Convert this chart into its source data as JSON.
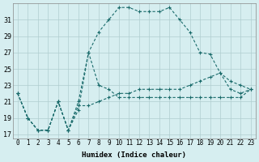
{
  "xlabel": "Humidex (Indice chaleur)",
  "background_color": "#d6eef0",
  "grid_color": "#b0cdd0",
  "line_color": "#1a6b6b",
  "xlim": [
    -0.5,
    23.5
  ],
  "ylim": [
    16.5,
    33.0
  ],
  "xticks": [
    0,
    1,
    2,
    3,
    4,
    5,
    6,
    7,
    8,
    9,
    10,
    11,
    12,
    13,
    14,
    15,
    16,
    17,
    18,
    19,
    20,
    21,
    22,
    23
  ],
  "yticks": [
    17,
    19,
    21,
    23,
    25,
    27,
    29,
    31
  ],
  "series": [
    [
      22.0,
      19.0,
      17.5,
      17.5,
      21.0,
      17.5,
      21.0,
      27.0,
      23.0,
      22.5,
      21.5,
      21.5,
      21.5,
      21.5,
      21.5,
      21.5,
      21.5,
      21.5,
      21.5,
      21.5,
      21.5,
      21.5,
      21.5,
      22.5
    ],
    [
      22.0,
      19.0,
      17.5,
      17.5,
      21.0,
      17.5,
      20.0,
      27.0,
      29.5,
      31.0,
      32.5,
      32.5,
      32.0,
      32.0,
      32.0,
      32.5,
      31.0,
      29.5,
      27.0,
      26.8,
      24.5,
      23.5,
      23.0,
      22.5
    ],
    [
      22.0,
      19.0,
      17.5,
      17.5,
      21.0,
      17.5,
      20.5,
      20.5,
      21.0,
      21.5,
      22.0,
      22.0,
      22.5,
      22.5,
      22.5,
      22.5,
      22.5,
      23.0,
      23.5,
      24.0,
      24.5,
      22.5,
      22.0,
      22.5
    ]
  ]
}
